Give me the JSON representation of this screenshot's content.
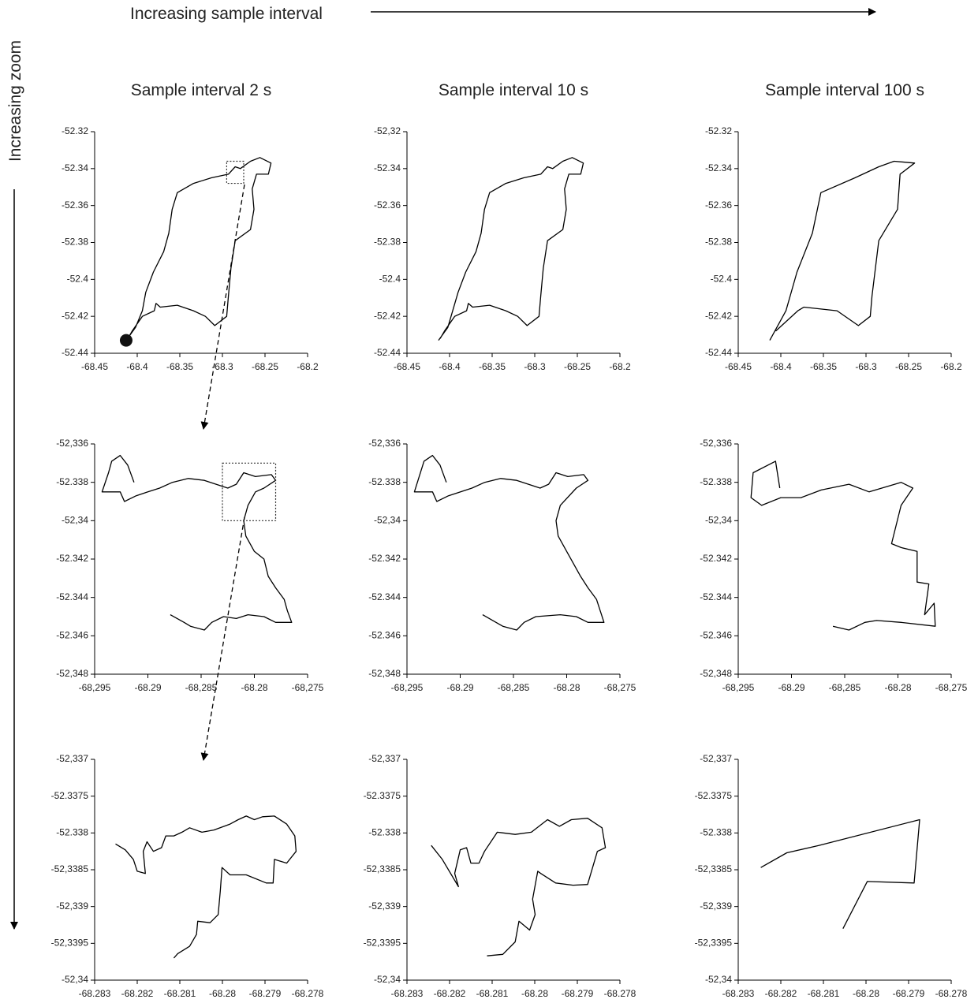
{
  "header": {
    "title": "Increasing sample interval",
    "side": "Increasing zoom"
  },
  "chart_data": [
    {
      "type": "line",
      "title": "Sample interval 2 s",
      "color": "#000000",
      "start_marker": true,
      "zoom_box": true,
      "xlim": [
        -68.45,
        -68.2
      ],
      "ylim": [
        -52.44,
        -52.32
      ],
      "xticks": [
        -68.45,
        -68.4,
        -68.35,
        -68.3,
        -68.25,
        -68.2
      ],
      "yticks": [
        -52.32,
        -52.34,
        -52.36,
        -52.38,
        -52.4,
        -52.42,
        -52.44
      ],
      "x": [
        -68.413,
        -68.402,
        -68.394,
        -68.39,
        -68.381,
        -68.369,
        -68.363,
        -68.359,
        -68.353,
        -68.334,
        -68.313,
        -68.293,
        -68.285,
        -68.279,
        -68.267,
        -68.256,
        -68.243,
        -68.246,
        -68.26,
        -68.265,
        -68.263,
        -68.267,
        -68.285,
        -68.29,
        -68.293,
        -68.295,
        -68.309,
        -68.32,
        -68.334,
        -68.353,
        -68.373,
        -68.378,
        -68.38,
        -68.394,
        -68.406,
        -68.411
      ],
      "values": [
        -52.433,
        -52.426,
        -52.417,
        -52.407,
        -52.396,
        -52.385,
        -52.375,
        -52.362,
        -52.353,
        -52.348,
        -52.345,
        -52.343,
        -52.339,
        -52.34,
        -52.336,
        -52.334,
        -52.337,
        -52.343,
        -52.343,
        -52.351,
        -52.362,
        -52.373,
        -52.379,
        -52.394,
        -52.409,
        -52.42,
        -52.425,
        -52.42,
        -52.417,
        -52.414,
        -52.415,
        -52.413,
        -52.417,
        -52.42,
        -52.428,
        -52.432
      ]
    },
    {
      "type": "line",
      "title": "Sample interval 10 s",
      "color": "#000000",
      "xlim": [
        -68.45,
        -68.2
      ],
      "ylim": [
        -52.44,
        -52.32
      ],
      "xticks": [
        -68.45,
        -68.4,
        -68.35,
        -68.3,
        -68.25,
        -68.2
      ],
      "yticks": [
        {
          "value": -52.32,
          "label": "-52,32"
        },
        -52.34,
        -52.36,
        -52.38,
        -52.4,
        -52.42,
        -52.44
      ],
      "x": [
        -68.413,
        -68.402,
        -68.39,
        -68.381,
        -68.369,
        -68.363,
        -68.359,
        -68.353,
        -68.334,
        -68.313,
        -68.293,
        -68.285,
        -68.279,
        -68.267,
        -68.256,
        -68.243,
        -68.246,
        -68.26,
        -68.265,
        -68.263,
        -68.267,
        -68.285,
        -68.29,
        -68.293,
        -68.295,
        -68.309,
        -68.32,
        -68.334,
        -68.353,
        -68.373,
        -68.378,
        -68.38,
        -68.394,
        -68.406,
        -68.411
      ],
      "values": [
        -52.433,
        -52.426,
        -52.407,
        -52.396,
        -52.385,
        -52.375,
        -52.362,
        -52.353,
        -52.348,
        -52.345,
        -52.343,
        -52.339,
        -52.34,
        -52.336,
        -52.334,
        -52.337,
        -52.343,
        -52.343,
        -52.351,
        -52.362,
        -52.373,
        -52.379,
        -52.394,
        -52.409,
        -52.42,
        -52.425,
        -52.42,
        -52.417,
        -52.414,
        -52.415,
        -52.413,
        -52.417,
        -52.42,
        -52.428,
        -52.432
      ]
    },
    {
      "type": "line",
      "title": "Sample interval 100 s",
      "color": "#000000",
      "xlim": [
        -68.45,
        -68.2
      ],
      "ylim": [
        -52.44,
        -52.32
      ],
      "xticks": [
        -68.45,
        -68.4,
        -68.35,
        -68.3,
        -68.25,
        -68.2
      ],
      "yticks": [
        -52.32,
        -52.34,
        -52.36,
        -52.38,
        -52.4,
        -52.42,
        -52.44
      ],
      "x": [
        -68.413,
        -68.394,
        -68.381,
        -68.363,
        -68.353,
        -68.313,
        -68.285,
        -68.267,
        -68.243,
        -68.26,
        -68.263,
        -68.285,
        -68.293,
        -68.295,
        -68.309,
        -68.334,
        -68.373,
        -68.38,
        -68.406
      ],
      "values": [
        -52.433,
        -52.417,
        -52.396,
        -52.375,
        -52.353,
        -52.345,
        -52.339,
        -52.336,
        -52.337,
        -52.343,
        -52.362,
        -52.379,
        -52.409,
        -52.42,
        -52.425,
        -52.417,
        -52.415,
        -52.417,
        -52.428
      ]
    },
    {
      "type": "line",
      "color": "#000000",
      "zoom_box": true,
      "xlim": [
        -68.295,
        -68.275
      ],
      "ylim": [
        -52.348,
        -52.336
      ],
      "xticks": [
        {
          "value": -68.295,
          "label": "-68,295"
        },
        -68.29,
        {
          "value": -68.285,
          "label": "-68,285"
        },
        -68.28,
        {
          "value": -68.275,
          "label": "-68,275"
        }
      ],
      "yticks": [
        {
          "value": -52.336,
          "label": "-52,336"
        },
        -52.338,
        {
          "value": -52.34,
          "label": "-52,34"
        },
        -52.342,
        -52.344,
        -52.346,
        {
          "value": -52.348,
          "label": "-52,348"
        }
      ],
      "x": [
        -68.2913,
        -68.2919,
        -68.2926,
        -68.2934,
        -68.2937,
        -68.2943,
        -68.2926,
        -68.2922,
        -68.2911,
        -68.29,
        -68.2889,
        -68.2877,
        -68.2862,
        -68.2847,
        -68.2836,
        -68.2825,
        -68.2817,
        -68.281,
        -68.2799,
        -68.2784,
        -68.278,
        -68.2791,
        -68.2799,
        -68.2806,
        -68.281,
        -68.2808,
        -68.28,
        -68.2791,
        -68.2787,
        -68.278,
        -68.2772,
        -68.2769,
        -68.2765,
        -68.278,
        -68.2791,
        -68.2806,
        -68.2817,
        -68.2829,
        -68.284,
        -68.2847,
        -68.286,
        -68.2866,
        -68.2879
      ],
      "values": [
        -52.338,
        -52.3371,
        -52.3366,
        -52.3369,
        -52.3375,
        -52.3385,
        -52.3385,
        -52.339,
        -52.3387,
        -52.3385,
        -52.3383,
        -52.338,
        -52.3378,
        -52.3379,
        -52.3381,
        -52.3383,
        -52.3381,
        -52.3375,
        -52.3377,
        -52.3376,
        -52.3379,
        -52.3383,
        -52.3385,
        -52.3392,
        -52.34,
        -52.3408,
        -52.3416,
        -52.342,
        -52.3429,
        -52.3435,
        -52.3441,
        -52.3447,
        -52.3453,
        -52.3453,
        -52.345,
        -52.3449,
        -52.3451,
        -52.345,
        -52.3453,
        -52.3457,
        -52.3455,
        -52.3453,
        -52.3449
      ]
    },
    {
      "type": "line",
      "color": "#000000",
      "xlim": [
        -68.295,
        -68.275
      ],
      "ylim": [
        -52.348,
        -52.336
      ],
      "xticks": [
        {
          "value": -68.295,
          "label": "-68,295"
        },
        -68.29,
        {
          "value": -68.285,
          "label": "-68,285"
        },
        -68.28,
        {
          "value": -68.275,
          "label": "-68,275"
        }
      ],
      "yticks": [
        {
          "value": -52.336,
          "label": "-52,336"
        },
        -52.338,
        {
          "value": -52.34,
          "label": "-52,34"
        },
        -52.342,
        -52.344,
        -52.346,
        {
          "value": -52.348,
          "label": "-52,348"
        }
      ],
      "x": [
        -68.2913,
        -68.2919,
        -68.2926,
        -68.2934,
        -68.2943,
        -68.2926,
        -68.2922,
        -68.2911,
        -68.2889,
        -68.2877,
        -68.2862,
        -68.2847,
        -68.2825,
        -68.2817,
        -68.281,
        -68.2799,
        -68.2784,
        -68.278,
        -68.2791,
        -68.2806,
        -68.281,
        -68.2808,
        -68.28,
        -68.2787,
        -68.278,
        -68.2772,
        -68.2765,
        -68.278,
        -68.2791,
        -68.2806,
        -68.2829,
        -68.284,
        -68.2847,
        -68.286,
        -68.2879
      ],
      "values": [
        -52.338,
        -52.3371,
        -52.3366,
        -52.3369,
        -52.3385,
        -52.3385,
        -52.339,
        -52.3387,
        -52.3383,
        -52.338,
        -52.3378,
        -52.3379,
        -52.3383,
        -52.3381,
        -52.3375,
        -52.3377,
        -52.3376,
        -52.3379,
        -52.3383,
        -52.3392,
        -52.34,
        -52.3408,
        -52.3416,
        -52.3429,
        -52.3435,
        -52.3441,
        -52.3453,
        -52.3453,
        -52.345,
        -52.3449,
        -52.345,
        -52.3453,
        -52.3457,
        -52.3455,
        -52.3449
      ]
    },
    {
      "type": "line",
      "color": "#000000",
      "xlim": [
        -68.295,
        -68.275
      ],
      "ylim": [
        -52.348,
        -52.336
      ],
      "xticks": [
        {
          "value": -68.295,
          "label": "-68,295"
        },
        -68.29,
        {
          "value": -68.285,
          "label": "-68,285"
        },
        -68.28,
        {
          "value": -68.275,
          "label": "-68,275"
        }
      ],
      "yticks": [
        {
          "value": -52.336,
          "label": "-52,336"
        },
        -52.338,
        {
          "value": -52.34,
          "label": "-52,34"
        },
        -52.342,
        -52.344,
        -52.346,
        {
          "value": -52.348,
          "label": "-52,348"
        }
      ],
      "x": [
        -68.2911,
        -68.2915,
        -68.2936,
        -68.2938,
        -68.2928,
        -68.291,
        -68.2891,
        -68.2872,
        -68.2846,
        -68.2827,
        -68.2797,
        -68.2786,
        -68.2797,
        -68.2806,
        -68.2797,
        -68.2782,
        -68.2782,
        -68.2771,
        -68.2775,
        -68.2766,
        -68.2765,
        -68.2797,
        -68.282,
        -68.2831,
        -68.2846,
        -68.2861
      ],
      "values": [
        -52.3383,
        -52.3369,
        -52.3375,
        -52.3388,
        -52.3392,
        -52.3388,
        -52.3388,
        -52.3384,
        -52.3381,
        -52.3385,
        -52.338,
        -52.3383,
        -52.3392,
        -52.3412,
        -52.3414,
        -52.3416,
        -52.3432,
        -52.3433,
        -52.3449,
        -52.3443,
        -52.3455,
        -52.3453,
        -52.3452,
        -52.3453,
        -52.3457,
        -52.3455
      ]
    },
    {
      "type": "line",
      "color": "#000000",
      "xlim": [
        -68.283,
        -68.278
      ],
      "ylim": [
        -52.34,
        -52.337
      ],
      "xticks": [
        -68.283,
        -68.282,
        -68.281,
        -68.28,
        -68.279,
        -68.278
      ],
      "yticks": [
        {
          "value": -52.337,
          "label": "-52,337"
        },
        -52.3375,
        -52.338,
        {
          "value": -52.3385,
          "label": "-52,3385"
        },
        {
          "value": -52.339,
          "label": "-52,339"
        },
        {
          "value": -52.3395,
          "label": "-52,3395"
        },
        {
          "value": -52.34,
          "label": "-52,34"
        }
      ],
      "x": [
        -68.28251,
        -68.28228,
        -68.28209,
        -68.282,
        -68.28181,
        -68.28186,
        -68.28177,
        -68.28162,
        -68.28143,
        -68.28133,
        -68.28114,
        -68.28095,
        -68.28077,
        -68.28048,
        -68.2802,
        -68.27982,
        -68.27963,
        -68.27944,
        -68.27925,
        -68.27906,
        -68.27878,
        -68.27849,
        -68.2783,
        -68.27827,
        -68.27849,
        -68.27878,
        -68.27881,
        -68.27897,
        -68.27944,
        -68.27982,
        -68.28001,
        -68.28005,
        -68.2801,
        -68.28029,
        -68.28058,
        -68.28061,
        -68.28077,
        -68.28105,
        -68.28114
      ],
      "values": [
        -52.33815,
        -52.33823,
        -52.33836,
        -52.33852,
        -52.33855,
        -52.33825,
        -52.33812,
        -52.33825,
        -52.3382,
        -52.33804,
        -52.33804,
        -52.33799,
        -52.33793,
        -52.33799,
        -52.33796,
        -52.33788,
        -52.33782,
        -52.33777,
        -52.33782,
        -52.33778,
        -52.33777,
        -52.33788,
        -52.33804,
        -52.33825,
        -52.33841,
        -52.33836,
        -52.33868,
        -52.33868,
        -52.33857,
        -52.33857,
        -52.33847,
        -52.33879,
        -52.33911,
        -52.33922,
        -52.3392,
        -52.33938,
        -52.33954,
        -52.33964,
        -52.3397
      ]
    },
    {
      "type": "line",
      "color": "#000000",
      "xlim": [
        -68.283,
        -68.278
      ],
      "ylim": [
        -52.34,
        -52.337
      ],
      "xticks": [
        -68.283,
        -68.282,
        -68.281,
        -68.28,
        -68.279,
        -68.278
      ],
      "yticks": [
        {
          "value": -52.337,
          "label": "-52,337"
        },
        -52.3375,
        -52.338,
        {
          "value": -52.3385,
          "label": "-52,3385"
        },
        {
          "value": -52.339,
          "label": "-52,339"
        },
        {
          "value": -52.3395,
          "label": "-52,3395"
        },
        {
          "value": -52.34,
          "label": "-52,34"
        }
      ],
      "x": [
        -68.28243,
        -68.28217,
        -68.28179,
        -68.28188,
        -68.28175,
        -68.2816,
        -68.2815,
        -68.28131,
        -68.28118,
        -68.28088,
        -68.28046,
        -68.28008,
        -68.2797,
        -68.27942,
        -68.27914,
        -68.27876,
        -68.27842,
        -68.27834,
        -68.27853,
        -68.27876,
        -68.2791,
        -68.27951,
        -68.27986,
        -68.27993,
        -68.28005,
        -68.27999,
        -68.28012,
        -68.28037,
        -68.28046,
        -68.28075,
        -68.28112
      ],
      "values": [
        -52.33817,
        -52.33836,
        -52.33873,
        -52.33855,
        -52.33823,
        -52.3382,
        -52.33841,
        -52.33841,
        -52.33825,
        -52.33799,
        -52.33802,
        -52.33799,
        -52.33782,
        -52.33791,
        -52.33782,
        -52.3378,
        -52.33793,
        -52.3382,
        -52.33825,
        -52.3387,
        -52.33871,
        -52.33868,
        -52.33855,
        -52.33852,
        -52.3389,
        -52.33911,
        -52.33932,
        -52.3392,
        -52.33948,
        -52.33965,
        -52.33967
      ]
    },
    {
      "type": "line",
      "color": "#000000",
      "xlim": [
        -68.283,
        -68.278
      ],
      "ylim": [
        -52.34,
        -52.337
      ],
      "xticks": [
        -68.283,
        -68.282,
        -68.281,
        -68.28,
        -68.279,
        -68.278
      ],
      "yticks": [
        {
          "value": -52.337,
          "label": "-52,337"
        },
        -52.3375,
        -52.338,
        {
          "value": -52.3385,
          "label": "-52,3385"
        },
        {
          "value": -52.339,
          "label": "-52,339"
        },
        {
          "value": -52.3395,
          "label": "-52,3395"
        },
        {
          "value": -52.34,
          "label": "-52,34"
        }
      ],
      "x": [
        -68.28247,
        -68.28186,
        -68.28111,
        -68.27874,
        -68.27887,
        -68.27997,
        -68.28054
      ],
      "values": [
        -52.33847,
        -52.33827,
        -52.33817,
        -52.33782,
        -52.33868,
        -52.33866,
        -52.3393
      ]
    }
  ]
}
